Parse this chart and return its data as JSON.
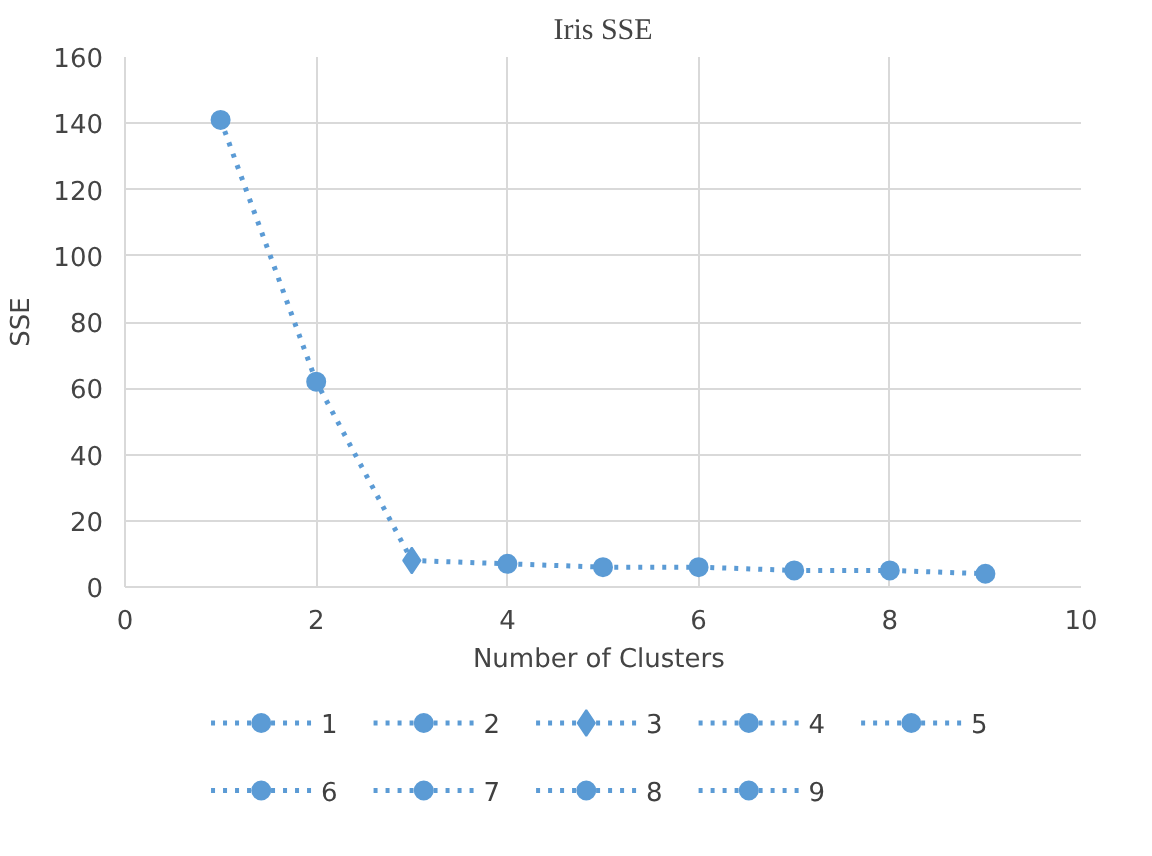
{
  "chart_data": {
    "type": "line",
    "title": "Iris SSE",
    "xlabel": "Number  of Clusters",
    "ylabel": "SSE",
    "x": [
      1,
      2,
      3,
      4,
      5,
      6,
      7,
      8,
      9
    ],
    "series": [
      {
        "color": "#5b9bd5",
        "values": [
          141,
          62,
          8,
          7,
          6,
          6,
          5,
          5,
          4
        ],
        "marker": "none"
      },
      {
        "name": "1",
        "color": "#5b9bd5",
        "x": [
          1
        ],
        "values": [
          141
        ],
        "marker": "circle"
      },
      {
        "name": "2",
        "color": "#5b9bd5",
        "x": [
          2
        ],
        "values": [
          62
        ],
        "marker": "circle"
      },
      {
        "name": "3",
        "color": "#5b9bd5",
        "x": [
          3
        ],
        "values": [
          8
        ],
        "marker": "diamond"
      },
      {
        "name": "4",
        "color": "#5b9bd5",
        "x": [
          4
        ],
        "values": [
          7
        ],
        "marker": "circle"
      },
      {
        "name": "5",
        "color": "#5b9bd5",
        "x": [
          5
        ],
        "values": [
          6
        ],
        "marker": "circle"
      },
      {
        "name": "6",
        "color": "#5b9bd5",
        "x": [
          6
        ],
        "values": [
          6
        ],
        "marker": "circle"
      },
      {
        "name": "7",
        "color": "#5b9bd5",
        "x": [
          7
        ],
        "values": [
          5
        ],
        "marker": "circle"
      },
      {
        "name": "8",
        "color": "#5b9bd5",
        "x": [
          8
        ],
        "values": [
          5
        ],
        "marker": "circle"
      },
      {
        "name": "9",
        "color": "#5b9bd5",
        "x": [
          9
        ],
        "values": [
          4
        ],
        "marker": "circle"
      }
    ],
    "xlim": [
      0,
      10
    ],
    "xticks": [
      0,
      2,
      4,
      6,
      8,
      10
    ],
    "ylim": [
      0,
      160
    ],
    "yticks": [
      0,
      20,
      40,
      60,
      80,
      100,
      120,
      140,
      160
    ],
    "grid": true,
    "legend": "bottom",
    "line_style": "dotted"
  }
}
